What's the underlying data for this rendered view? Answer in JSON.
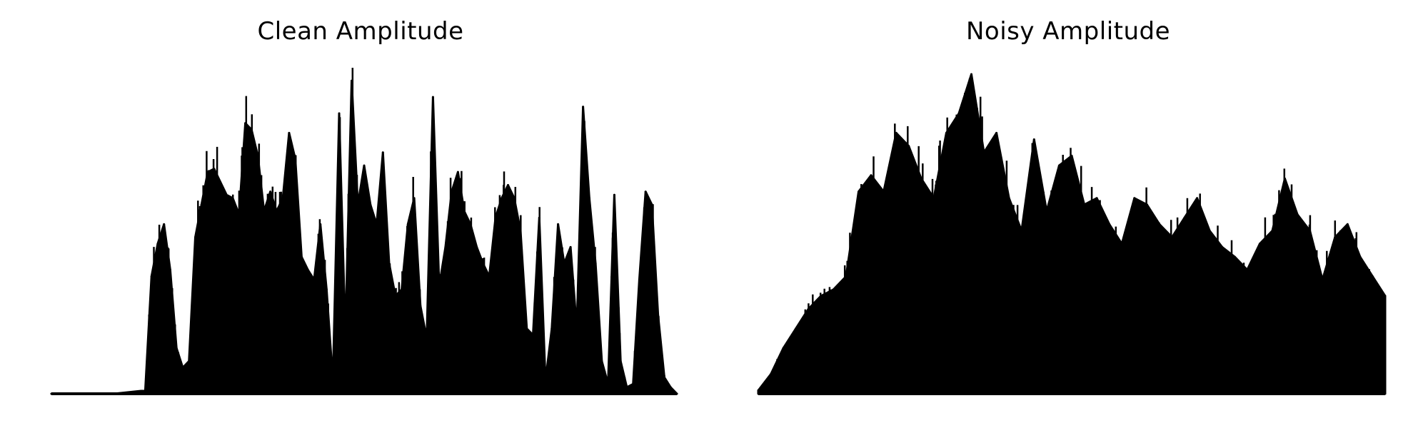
{
  "chart_data": [
    {
      "type": "area",
      "title": "Clean Amplitude",
      "xlabel": "",
      "ylabel": "",
      "axes_visible": false,
      "grid": false,
      "color": "#000000",
      "ylim": [
        0,
        1.0
      ],
      "x": [
        0,
        5,
        10,
        15,
        16,
        17,
        18,
        19,
        20,
        21,
        22,
        23,
        24,
        25,
        26,
        27,
        28,
        29,
        30,
        31,
        32,
        33,
        34,
        35,
        36,
        37,
        38,
        39,
        40,
        41,
        42,
        43,
        44,
        45,
        46,
        47,
        48,
        49,
        50,
        51,
        52,
        53,
        54,
        55,
        56,
        57,
        58,
        59,
        60,
        61,
        62,
        63,
        64,
        65,
        66,
        67,
        68,
        69,
        70,
        71,
        72,
        73,
        74,
        75,
        76,
        77,
        78,
        79,
        80,
        81,
        82,
        83,
        84,
        85,
        86,
        87,
        88,
        89,
        90,
        91,
        92,
        93,
        94,
        95,
        96,
        97,
        98,
        99,
        100
      ],
      "values": [
        0.0,
        0.0,
        0.0,
        0.01,
        0.36,
        0.46,
        0.52,
        0.38,
        0.14,
        0.08,
        0.1,
        0.48,
        0.58,
        0.68,
        0.69,
        0.65,
        0.61,
        0.6,
        0.55,
        0.83,
        0.81,
        0.73,
        0.56,
        0.62,
        0.56,
        0.6,
        0.8,
        0.72,
        0.42,
        0.38,
        0.35,
        0.52,
        0.32,
        0.04,
        0.86,
        0.18,
        0.96,
        0.58,
        0.7,
        0.58,
        0.52,
        0.74,
        0.4,
        0.3,
        0.32,
        0.52,
        0.6,
        0.27,
        0.17,
        0.91,
        0.33,
        0.45,
        0.62,
        0.68,
        0.56,
        0.52,
        0.45,
        0.4,
        0.36,
        0.54,
        0.6,
        0.64,
        0.6,
        0.5,
        0.2,
        0.18,
        0.54,
        0.04,
        0.2,
        0.52,
        0.4,
        0.45,
        0.2,
        0.88,
        0.6,
        0.4,
        0.1,
        0.03,
        0.61,
        0.1,
        0.02,
        0.03,
        0.35,
        0.62,
        0.58,
        0.24,
        0.05,
        0.02,
        0.0
      ]
    },
    {
      "type": "area",
      "title": "Noisy Amplitude",
      "xlabel": "",
      "ylabel": "",
      "axes_visible": false,
      "grid": false,
      "color": "#000000",
      "ylim": [
        0,
        1.0
      ],
      "x": [
        0,
        2,
        4,
        6,
        8,
        10,
        12,
        14,
        16,
        18,
        20,
        22,
        24,
        26,
        28,
        30,
        32,
        34,
        36,
        38,
        40,
        42,
        44,
        46,
        48,
        50,
        52,
        54,
        56,
        58,
        60,
        62,
        64,
        66,
        68,
        70,
        72,
        74,
        76,
        78,
        80,
        82,
        84,
        86,
        88,
        90,
        92,
        94,
        96,
        98,
        100
      ],
      "values": [
        0.01,
        0.06,
        0.14,
        0.2,
        0.26,
        0.3,
        0.32,
        0.36,
        0.62,
        0.67,
        0.62,
        0.8,
        0.76,
        0.66,
        0.6,
        0.8,
        0.86,
        0.98,
        0.74,
        0.8,
        0.6,
        0.5,
        0.78,
        0.56,
        0.7,
        0.73,
        0.58,
        0.6,
        0.52,
        0.46,
        0.6,
        0.58,
        0.52,
        0.48,
        0.54,
        0.6,
        0.5,
        0.45,
        0.42,
        0.38,
        0.46,
        0.5,
        0.66,
        0.55,
        0.5,
        0.35,
        0.48,
        0.52,
        0.42,
        0.36,
        0.3
      ]
    }
  ]
}
